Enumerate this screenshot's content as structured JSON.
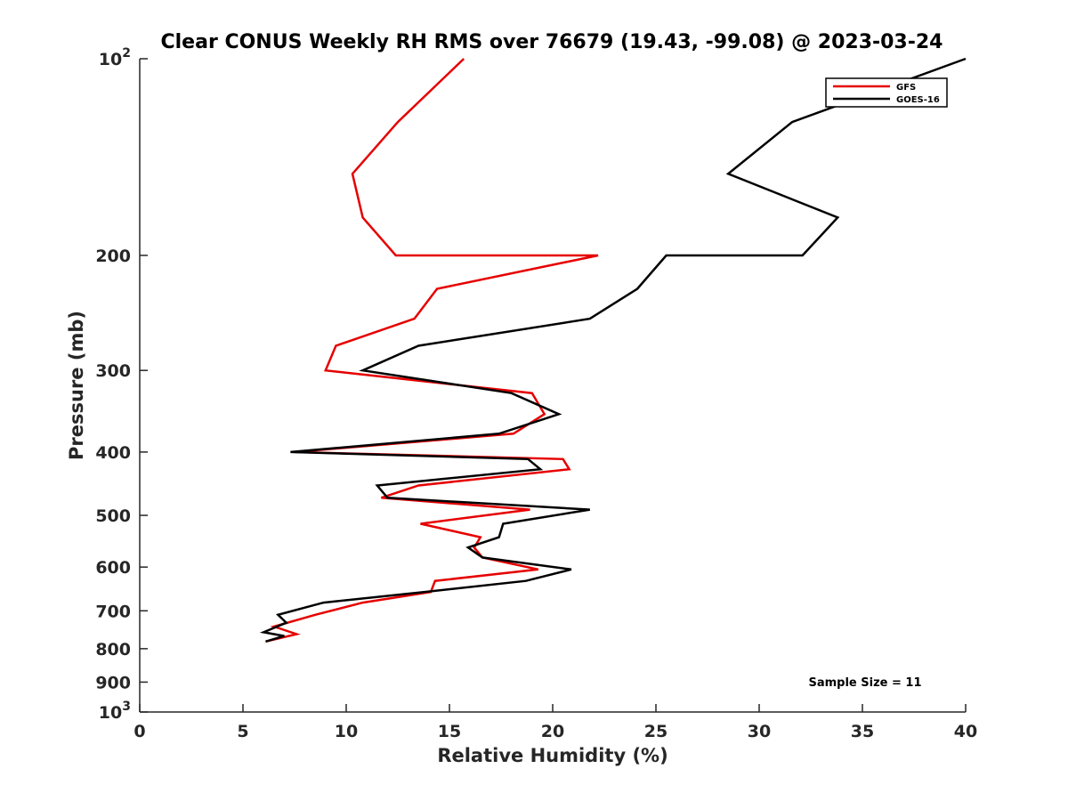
{
  "chart_data": {
    "type": "line",
    "title": "Clear CONUS Weekly RH RMS over 76679 (19.43, -99.08) @ 2023-03-24",
    "xlabel": "Relative Humidity (%)",
    "ylabel": "Pressure (mb)",
    "xlim": [
      0,
      40
    ],
    "ylim": [
      100,
      1000
    ],
    "y_scale": "log",
    "y_reversed": true,
    "x_ticks": [
      "0",
      "5",
      "10",
      "15",
      "20",
      "25",
      "30",
      "35",
      "40"
    ],
    "y_ticks": [
      {
        "value": 100,
        "label": "10",
        "sup": "2"
      },
      {
        "value": 200,
        "label": "200",
        "sup": ""
      },
      {
        "value": 300,
        "label": "300",
        "sup": ""
      },
      {
        "value": 400,
        "label": "400",
        "sup": ""
      },
      {
        "value": 500,
        "label": "500",
        "sup": ""
      },
      {
        "value": 600,
        "label": "600",
        "sup": ""
      },
      {
        "value": 700,
        "label": "700",
        "sup": ""
      },
      {
        "value": 800,
        "label": "800",
        "sup": ""
      },
      {
        "value": 900,
        "label": "900",
        "sup": ""
      },
      {
        "value": 1000,
        "label": "10",
        "sup": "3"
      }
    ],
    "grid": false,
    "legend_position": "top-right",
    "annotation": "Sample Size = 11",
    "series": [
      {
        "name": "GFS",
        "color": "#e60000",
        "points": [
          {
            "x": 15.7,
            "p": 100
          },
          {
            "x": 12.5,
            "p": 125
          },
          {
            "x": 10.3,
            "p": 150
          },
          {
            "x": 10.8,
            "p": 175
          },
          {
            "x": 12.4,
            "p": 200
          },
          {
            "x": 22.2,
            "p": 200
          },
          {
            "x": 14.4,
            "p": 225
          },
          {
            "x": 13.3,
            "p": 250
          },
          {
            "x": 9.5,
            "p": 275
          },
          {
            "x": 9.0,
            "p": 300
          },
          {
            "x": 19.0,
            "p": 325
          },
          {
            "x": 19.6,
            "p": 350
          },
          {
            "x": 18.1,
            "p": 375
          },
          {
            "x": 7.5,
            "p": 400
          },
          {
            "x": 20.5,
            "p": 410
          },
          {
            "x": 20.8,
            "p": 425
          },
          {
            "x": 13.5,
            "p": 450
          },
          {
            "x": 11.7,
            "p": 470
          },
          {
            "x": 18.9,
            "p": 490
          },
          {
            "x": 13.6,
            "p": 515
          },
          {
            "x": 16.5,
            "p": 540
          },
          {
            "x": 16.2,
            "p": 560
          },
          {
            "x": 16.6,
            "p": 580
          },
          {
            "x": 19.3,
            "p": 605
          },
          {
            "x": 14.3,
            "p": 630
          },
          {
            "x": 14.1,
            "p": 655
          },
          {
            "x": 10.8,
            "p": 680
          },
          {
            "x": 8.5,
            "p": 710
          },
          {
            "x": 6.5,
            "p": 740
          },
          {
            "x": 7.6,
            "p": 760
          },
          {
            "x": 6.1,
            "p": 780
          }
        ]
      },
      {
        "name": "GOES-16",
        "color": "#000000",
        "points": [
          {
            "x": 40.0,
            "p": 100
          },
          {
            "x": 31.6,
            "p": 125
          },
          {
            "x": 28.5,
            "p": 150
          },
          {
            "x": 33.8,
            "p": 175
          },
          {
            "x": 32.1,
            "p": 200
          },
          {
            "x": 25.5,
            "p": 200
          },
          {
            "x": 24.1,
            "p": 225
          },
          {
            "x": 21.8,
            "p": 250
          },
          {
            "x": 13.5,
            "p": 275
          },
          {
            "x": 10.8,
            "p": 300
          },
          {
            "x": 18.0,
            "p": 325
          },
          {
            "x": 20.3,
            "p": 350
          },
          {
            "x": 17.4,
            "p": 375
          },
          {
            "x": 7.3,
            "p": 400
          },
          {
            "x": 18.8,
            "p": 410
          },
          {
            "x": 19.4,
            "p": 425
          },
          {
            "x": 11.5,
            "p": 450
          },
          {
            "x": 12.0,
            "p": 470
          },
          {
            "x": 21.8,
            "p": 490
          },
          {
            "x": 17.6,
            "p": 515
          },
          {
            "x": 17.4,
            "p": 540
          },
          {
            "x": 15.9,
            "p": 560
          },
          {
            "x": 16.6,
            "p": 580
          },
          {
            "x": 20.9,
            "p": 605
          },
          {
            "x": 18.7,
            "p": 630
          },
          {
            "x": 13.8,
            "p": 655
          },
          {
            "x": 8.9,
            "p": 680
          },
          {
            "x": 6.7,
            "p": 710
          },
          {
            "x": 7.1,
            "p": 730
          },
          {
            "x": 6.0,
            "p": 755
          },
          {
            "x": 7.0,
            "p": 765
          },
          {
            "x": 6.1,
            "p": 780
          }
        ]
      }
    ]
  }
}
